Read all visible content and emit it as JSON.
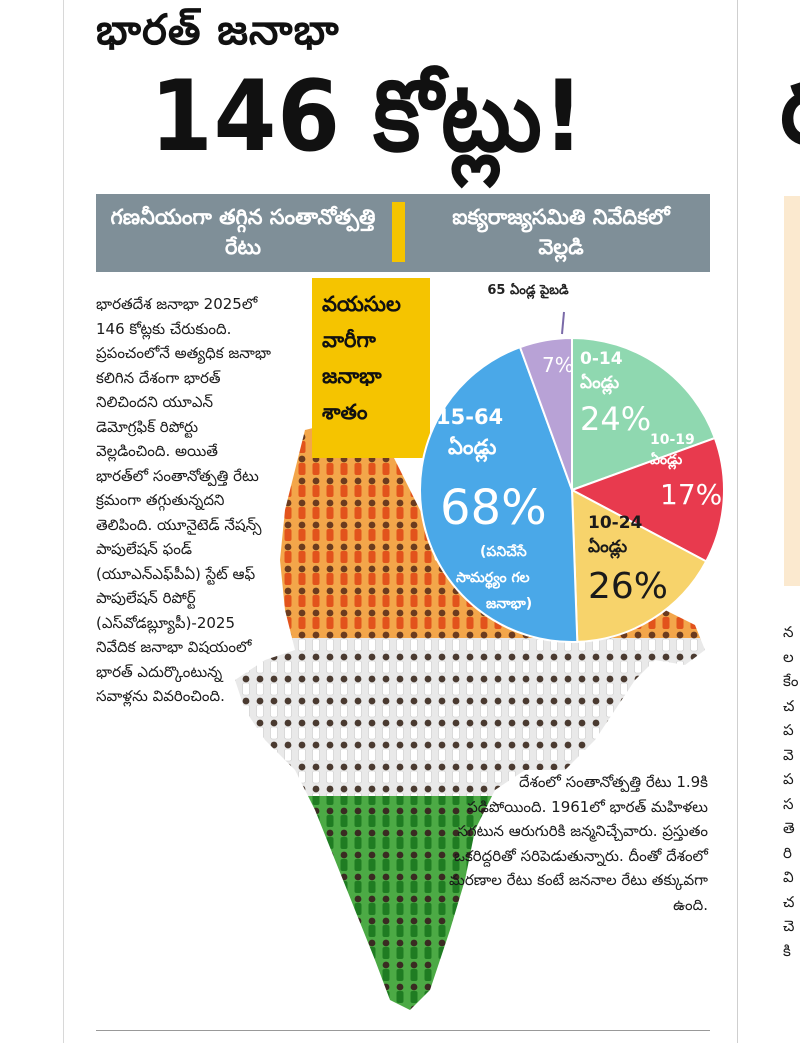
{
  "article": {
    "kicker": "భారత్ జనాభా",
    "headline": "146 కోట్లు!",
    "subhead_left": "గణనీయంగా తగ్గిన సంతానోత్పత్తి రేటు",
    "subhead_right": "ఐక్యరాజ్యసమితి నివేదికలో వెల్లడి",
    "body_paragraph": "భారతదేశ జనాభా 2025లో 146 కోట్లకు చేరుకుంది. ప్రపంచంలోనే అత్యధిక జనాభా కలిగిన దేశంగా భారత్ నిలిచిందని యూఎన్ డెమోగ్రఫిక్ రిపోర్టు వెల్లడించింది. అయితే భారత్‌లో సంతానోత్పత్తి రేటు క్రమంగా తగ్గుతున్నదని తెలిపింది. యూనైటెడ్ నేషన్స్ పాపులేషన్ ఫండ్ (యూఎన్ఎఫ్‌పీఏ) స్టేట్ ఆఫ్ పాపులేషన్ రిపోర్ట్ (ఎస్‌వోడబ్ల్యూపీ)-2025 నివేదిక జనాభా విషయంలో భారత్ ఎదుర్కొంటున్న సవాళ్లను వివరించింది.",
    "lower_paragraph": "దేశంలో సంతానోత్పత్తి రేటు 1.9కి పడిపోయింది. 1961లో భారత్ మహిళలు సగటున ఆరుగురికి జన్మనిచ్చేవారు. ప్రస్తుతం ఒకరిద్దరితో సరిపెడుతున్నారు. దీంతో దేశంలో మరణాల రేటు కంటే జననాల రేటు తక్కువగా ఉంది."
  },
  "graphic": {
    "age_label": "వయసుల వారీగా జనాభా శాతం",
    "above65_label": "65 ఏండ్ల పైబడి",
    "colors": {
      "saffron": "#f5c400",
      "green": "#2f9a2f",
      "orange": "#ee7a1e",
      "red": "#d8262e"
    }
  },
  "chart_data": {
    "type": "pie",
    "slices": [
      {
        "label": "0-14 ఏండ్లు",
        "value": 24,
        "value_label": "24%",
        "color": "#8fd8b0"
      },
      {
        "label": "10-19 ఏండ్లు",
        "value": 17,
        "value_label": "17%",
        "color": "#e83a4e"
      },
      {
        "label": "10-24 ఏండ్లు",
        "value": 26,
        "value_label": "26%",
        "color": "#f7d36b"
      },
      {
        "label": "15-64 ఏండ్లు",
        "value": 68,
        "value_label": "68%",
        "note": "(పనిచేసే సామర్థ్యం గల జనాభా)",
        "color": "#4aa8e8"
      },
      {
        "label": "65 ఏండ్ల పైబడి",
        "value": 7,
        "value_label": "7%",
        "color": "#b8a2d6"
      }
    ]
  },
  "next_column": {
    "headline_fragment": "ర",
    "text_fragments": [
      "న",
      "ల",
      "కేం",
      "చ",
      "ప",
      "వె",
      "ప",
      "స",
      "తె",
      "రి",
      "వి",
      "చ",
      "చె",
      "కి"
    ]
  }
}
